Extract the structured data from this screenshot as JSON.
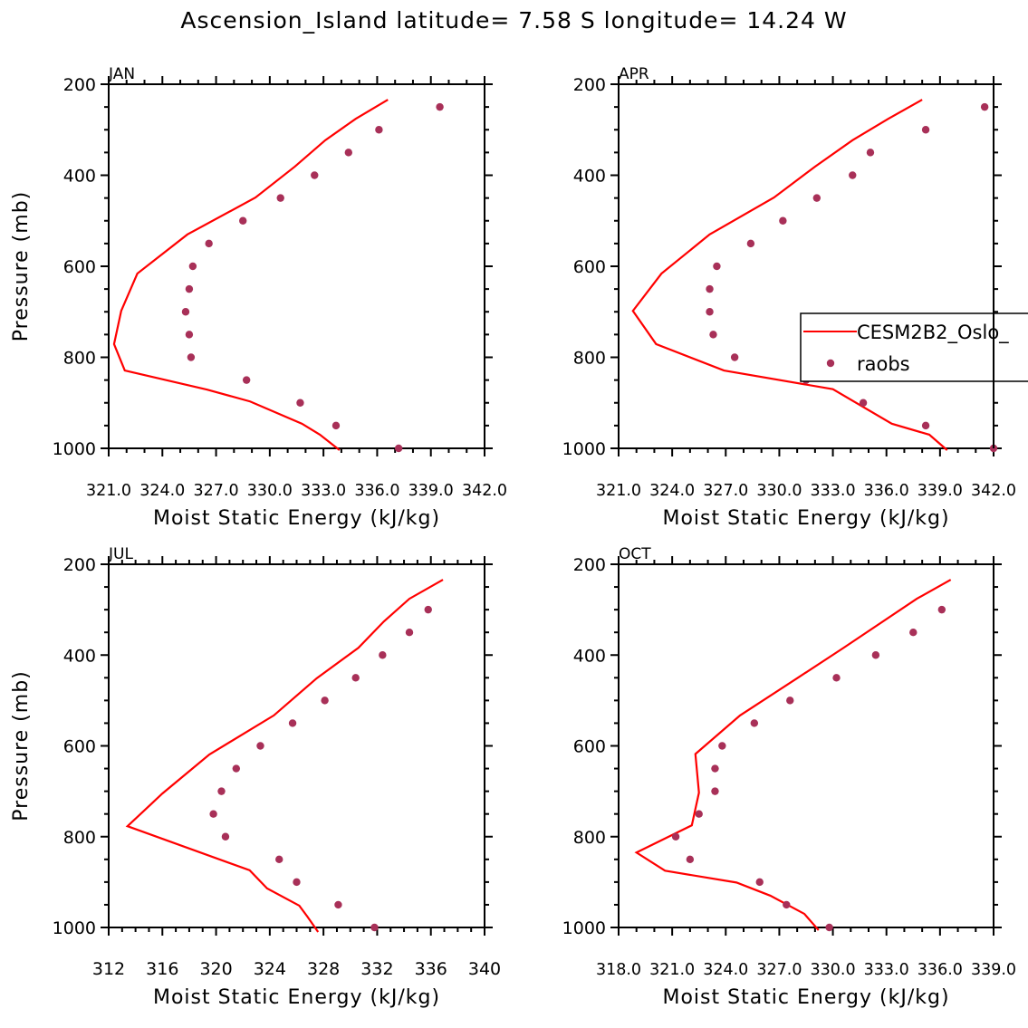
{
  "title": "Ascension_Island   latitude= 7.58 S longitude= 14.24 W",
  "colors": {
    "model": "#ff0000",
    "obs": "#a83058",
    "axis": "#000000"
  },
  "legend": {
    "entries": [
      "CESM2B2_Oslo_",
      "raobs"
    ],
    "placement": "APR panel, right-middle"
  },
  "chart_data": [
    {
      "type": "line",
      "panel": "JAN",
      "xlabel": "Moist Static Energy (kJ/kg)",
      "ylabel": "Pressure (mb)",
      "xlim": [
        321,
        342
      ],
      "ylim": [
        200,
        1000
      ],
      "y_inverted": true,
      "xticks": [
        321,
        324,
        327,
        330,
        333,
        336,
        339,
        342
      ],
      "xtick_labels": [
        "321.0",
        "324.0",
        "327.0",
        "330.0",
        "333.0",
        "336.0",
        "339.0",
        "342.0"
      ],
      "yticks": [
        200,
        400,
        600,
        800,
        1000
      ],
      "ytick_labels": [
        "200",
        "400",
        "600",
        "800",
        "1000"
      ],
      "series": [
        {
          "name": "CESM2B2_Oslo_",
          "style": "line",
          "x": [
            336.6,
            334.8,
            333.1,
            331.4,
            329.2,
            325.4,
            322.6,
            321.7,
            321.3,
            321.9,
            326.5,
            328.9,
            331.8,
            332.8,
            333.9
          ],
          "y": [
            234,
            276,
            323,
            381,
            449,
            530,
            616,
            698,
            771,
            829,
            871,
            897,
            946,
            970,
            1004
          ]
        },
        {
          "name": "raobs",
          "style": "marker",
          "x": [
            339.5,
            336.1,
            334.4,
            332.5,
            330.6,
            328.5,
            326.6,
            325.7,
            325.5,
            325.3,
            325.5,
            325.6,
            328.7,
            331.7,
            333.7,
            337.2
          ],
          "y": [
            250,
            300,
            350,
            400,
            450,
            500,
            550,
            600,
            650,
            700,
            750,
            800,
            850,
            900,
            950,
            1000
          ]
        }
      ]
    },
    {
      "type": "line",
      "panel": "APR",
      "xlabel": "Moist Static Energy (kJ/kg)",
      "ylabel": "",
      "xlim": [
        321,
        342
      ],
      "ylim": [
        200,
        1000
      ],
      "y_inverted": true,
      "xticks": [
        321,
        324,
        327,
        330,
        333,
        336,
        339,
        342
      ],
      "xtick_labels": [
        "321.0",
        "324.0",
        "327.0",
        "330.0",
        "333.0",
        "336.0",
        "339.0",
        "342.0"
      ],
      "yticks": [
        200,
        400,
        600,
        800,
        1000
      ],
      "ytick_labels": [
        "200",
        "400",
        "600",
        "800",
        "1000"
      ],
      "series": [
        {
          "name": "CESM2B2_Oslo_",
          "style": "line",
          "x": [
            338.0,
            336.1,
            334.1,
            332.0,
            329.7,
            326.1,
            323.4,
            321.8,
            323.1,
            326.9,
            333.0,
            336.3,
            338.4,
            339.4
          ],
          "y": [
            234,
            276,
            323,
            381,
            449,
            530,
            616,
            698,
            771,
            829,
            870,
            946,
            970,
            1004
          ]
        },
        {
          "name": "raobs",
          "style": "marker",
          "x": [
            341.5,
            338.2,
            335.1,
            334.1,
            332.1,
            330.2,
            328.4,
            326.5,
            326.1,
            326.1,
            326.3,
            327.5,
            331.5,
            334.7,
            338.2,
            342.0
          ],
          "y": [
            250,
            300,
            350,
            400,
            450,
            500,
            550,
            600,
            650,
            700,
            750,
            800,
            850,
            900,
            950,
            1000
          ]
        }
      ]
    },
    {
      "type": "line",
      "panel": "JUL",
      "xlabel": "Moist Static Energy (kJ/kg)",
      "ylabel": "Pressure (mb)",
      "xlim": [
        312,
        340
      ],
      "ylim": [
        200,
        1000
      ],
      "y_inverted": true,
      "xticks": [
        312,
        316,
        320,
        324,
        328,
        332,
        336,
        340
      ],
      "xtick_labels": [
        "312",
        "316",
        "320",
        "324",
        "328",
        "332",
        "336",
        "340"
      ],
      "yticks": [
        200,
        400,
        600,
        800,
        1000
      ],
      "ytick_labels": [
        "200",
        "400",
        "600",
        "800",
        "1000"
      ],
      "series": [
        {
          "name": "CESM2B2_Oslo_",
          "style": "line",
          "x": [
            336.9,
            334.4,
            332.5,
            330.6,
            327.5,
            324.3,
            319.5,
            316.0,
            313.4,
            322.5,
            323.8,
            326.2,
            326.8,
            327.6
          ],
          "y": [
            234,
            276,
            326,
            384,
            451,
            533,
            619,
            705,
            777,
            874,
            914,
            952,
            976,
            1010
          ]
        },
        {
          "name": "raobs",
          "style": "marker",
          "x": [
            335.8,
            334.4,
            332.4,
            330.4,
            328.1,
            325.7,
            323.3,
            321.5,
            320.4,
            319.8,
            320.7,
            324.7,
            326.0,
            329.1,
            331.8
          ],
          "y": [
            300,
            350,
            400,
            450,
            500,
            550,
            600,
            650,
            700,
            750,
            800,
            850,
            900,
            950,
            1000
          ]
        }
      ]
    },
    {
      "type": "line",
      "panel": "OCT",
      "xlabel": "Moist Static Energy (kJ/kg)",
      "ylabel": "",
      "xlim": [
        318,
        339
      ],
      "ylim": [
        200,
        1000
      ],
      "y_inverted": true,
      "xticks": [
        318,
        321,
        324,
        327,
        330,
        333,
        336,
        339
      ],
      "xtick_labels": [
        "318.0",
        "321.0",
        "324.0",
        "327.0",
        "330.0",
        "333.0",
        "336.0",
        "339.0"
      ],
      "yticks": [
        200,
        400,
        600,
        800,
        1000
      ],
      "ytick_labels": [
        "200",
        "400",
        "600",
        "800",
        "1000"
      ],
      "series": [
        {
          "name": "CESM2B2_Oslo_",
          "style": "line",
          "x": [
            336.6,
            334.7,
            330.6,
            328.0,
            324.8,
            322.3,
            322.5,
            322.1,
            319.0,
            320.6,
            324.6,
            326.5,
            328.4,
            329.2
          ],
          "y": [
            234,
            276,
            384,
            451,
            533,
            618,
            703,
            775,
            835,
            875,
            901,
            930,
            970,
            1006
          ]
        },
        {
          "name": "raobs",
          "style": "marker",
          "x": [
            336.1,
            334.5,
            332.4,
            330.2,
            327.6,
            325.6,
            323.8,
            323.4,
            323.4,
            322.5,
            321.2,
            322.0,
            325.9,
            327.4,
            329.8
          ],
          "y": [
            300,
            350,
            400,
            450,
            500,
            550,
            600,
            650,
            700,
            750,
            800,
            850,
            900,
            950,
            1000
          ]
        }
      ]
    }
  ]
}
